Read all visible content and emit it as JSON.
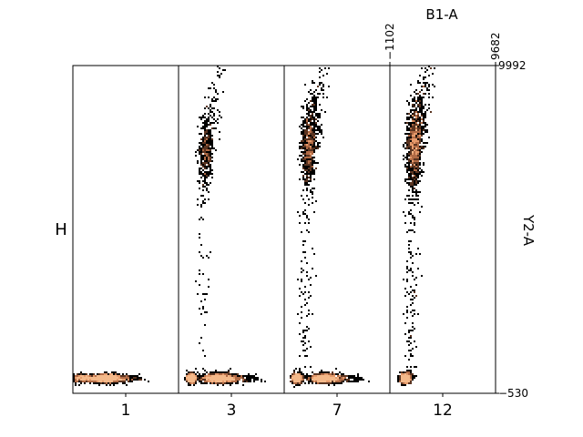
{
  "chart_data": {
    "type": "heatmap",
    "title": "",
    "ylabel_left": "H",
    "xlabel_top": "B1-A",
    "ylabel_right": "Y2-A",
    "x_tick_labels_top": [
      "−1102",
      "9682"
    ],
    "y_tick_labels_right": [
      "9992",
      "−530"
    ],
    "xlim": [
      -1102,
      9682
    ],
    "ylim": [
      -530,
      9992
    ],
    "panels": [
      {
        "category": "1",
        "populations": [
          {
            "name": "",
            "x_center": 100,
            "y_center": -50,
            "x_spread": 900,
            "y_spread": 60,
            "count": 650,
            "kind": "low"
          },
          {
            "name": "",
            "x_center": 2300,
            "y_center": -50,
            "x_spread": 1300,
            "y_spread": 65,
            "count": 1600,
            "kind": "low-wide"
          }
        ]
      },
      {
        "category": "3",
        "populations": [
          {
            "name": "",
            "x_center": 200,
            "y_center": -50,
            "x_spread": 220,
            "y_spread": 70,
            "count": 800,
            "kind": "low"
          },
          {
            "name": "",
            "x_center": 2900,
            "y_center": -50,
            "x_spread": 1500,
            "y_spread": 70,
            "count": 1700,
            "kind": "low-wide"
          },
          {
            "name": "",
            "x_center": 1700,
            "y_center": 7100,
            "x_spread": 430,
            "y_spread": 520,
            "count": 550,
            "kind": "high"
          }
        ]
      },
      {
        "category": "7",
        "populations": [
          {
            "name": "",
            "x_center": 200,
            "y_center": -50,
            "x_spread": 230,
            "y_spread": 75,
            "count": 800,
            "kind": "low"
          },
          {
            "name": "",
            "x_center": 2900,
            "y_center": -50,
            "x_spread": 1400,
            "y_spread": 70,
            "count": 1500,
            "kind": "low-wide"
          },
          {
            "name": "",
            "x_center": 1400,
            "y_center": 7300,
            "x_spread": 450,
            "y_spread": 580,
            "count": 1000,
            "kind": "high"
          }
        ]
      },
      {
        "category": "12",
        "populations": [
          {
            "name": "",
            "x_center": 500,
            "y_center": -50,
            "x_spread": 260,
            "y_spread": 80,
            "count": 750,
            "kind": "low"
          },
          {
            "name": "",
            "x_center": 1400,
            "y_center": 7300,
            "x_spread": 480,
            "y_spread": 640,
            "count": 1600,
            "kind": "high"
          }
        ]
      }
    ],
    "colormap": [
      "#000000",
      "#5a3421",
      "#b06a45",
      "#e59a6b",
      "#f4b98a"
    ],
    "grid": false,
    "legend": "none"
  }
}
